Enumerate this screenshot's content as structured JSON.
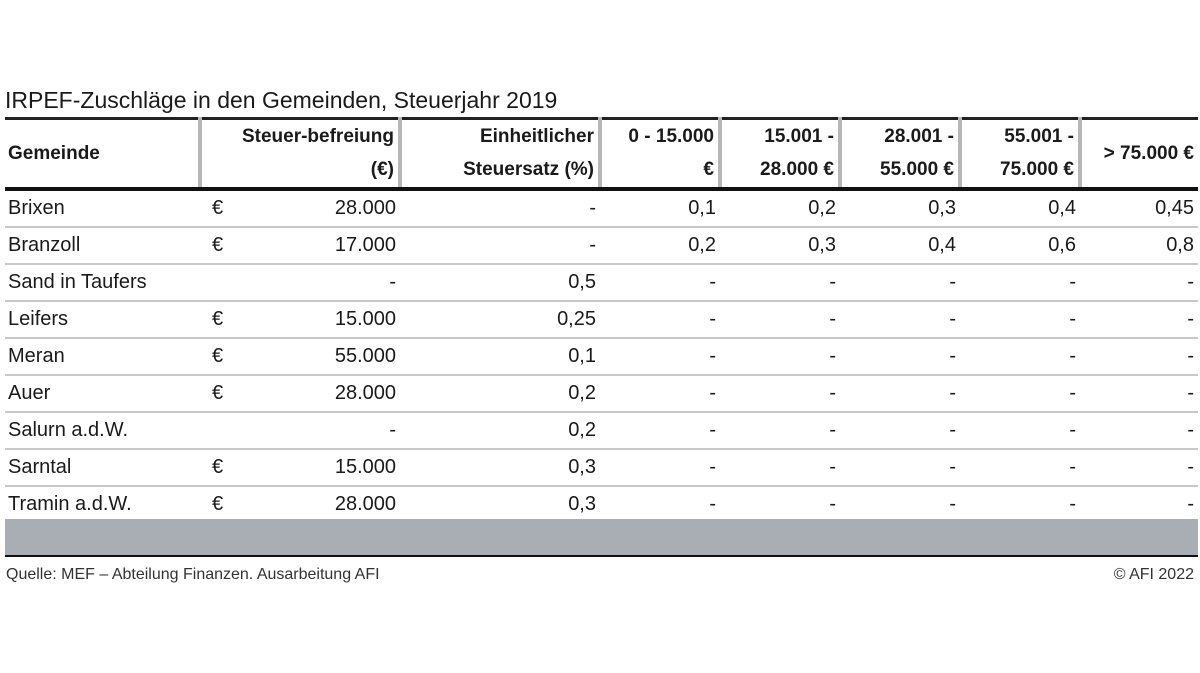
{
  "title": "IRPEF-Zuschläge in den Gemeinden, Steuerjahr 2019",
  "table": {
    "headers": {
      "gemeinde": "Gemeinde",
      "befreiung_l1": "Steuer-befreiung",
      "befreiung_l2": "(€)",
      "steuersatz_l1": "Einheitlicher",
      "steuersatz_l2": "Steuersatz (%)",
      "b1_l1": "0 - 15.000",
      "b1_l2": "€",
      "b2_l1": "15.001 -",
      "b2_l2": "28.000 €",
      "b3_l1": "28.001 -",
      "b3_l2": "55.000 €",
      "b4_l1": "55.001 -",
      "b4_l2": "75.000 €",
      "b5": "> 75.000 €"
    },
    "rows": [
      {
        "gemeinde": "Brixen",
        "cur": "€",
        "befreiung": "28.000",
        "satz": "-",
        "b1": "0,1",
        "b2": "0,2",
        "b3": "0,3",
        "b4": "0,4",
        "b5": "0,45"
      },
      {
        "gemeinde": "Branzoll",
        "cur": "€",
        "befreiung": "17.000",
        "satz": "-",
        "b1": "0,2",
        "b2": "0,3",
        "b3": "0,4",
        "b4": "0,6",
        "b5": "0,8"
      },
      {
        "gemeinde": "Sand in Taufers",
        "cur": "",
        "befreiung": "-",
        "satz": "0,5",
        "b1": "-",
        "b2": "-",
        "b3": "-",
        "b4": "-",
        "b5": "-"
      },
      {
        "gemeinde": "Leifers",
        "cur": "€",
        "befreiung": "15.000",
        "satz": "0,25",
        "b1": "-",
        "b2": "-",
        "b3": "-",
        "b4": "-",
        "b5": "-"
      },
      {
        "gemeinde": "Meran",
        "cur": "€",
        "befreiung": "55.000",
        "satz": "0,1",
        "b1": "-",
        "b2": "-",
        "b3": "-",
        "b4": "-",
        "b5": "-"
      },
      {
        "gemeinde": "Auer",
        "cur": "€",
        "befreiung": "28.000",
        "satz": "0,2",
        "b1": "-",
        "b2": "-",
        "b3": "-",
        "b4": "-",
        "b5": "-"
      },
      {
        "gemeinde": "Salurn a.d.W.",
        "cur": "",
        "befreiung": "-",
        "satz": "0,2",
        "b1": "-",
        "b2": "-",
        "b3": "-",
        "b4": "-",
        "b5": "-"
      },
      {
        "gemeinde": "Sarntal",
        "cur": "€",
        "befreiung": "15.000",
        "satz": "0,3",
        "b1": "-",
        "b2": "-",
        "b3": "-",
        "b4": "-",
        "b5": "-"
      },
      {
        "gemeinde": "Tramin a.d.W.",
        "cur": "€",
        "befreiung": "28.000",
        "satz": "0,3",
        "b1": "-",
        "b2": "-",
        "b3": "-",
        "b4": "-",
        "b5": "-"
      }
    ]
  },
  "footer": {
    "source": "Quelle: MEF – Abteilung Finanzen. Ausarbeitung AFI",
    "copyright": "© AFI 2022"
  }
}
